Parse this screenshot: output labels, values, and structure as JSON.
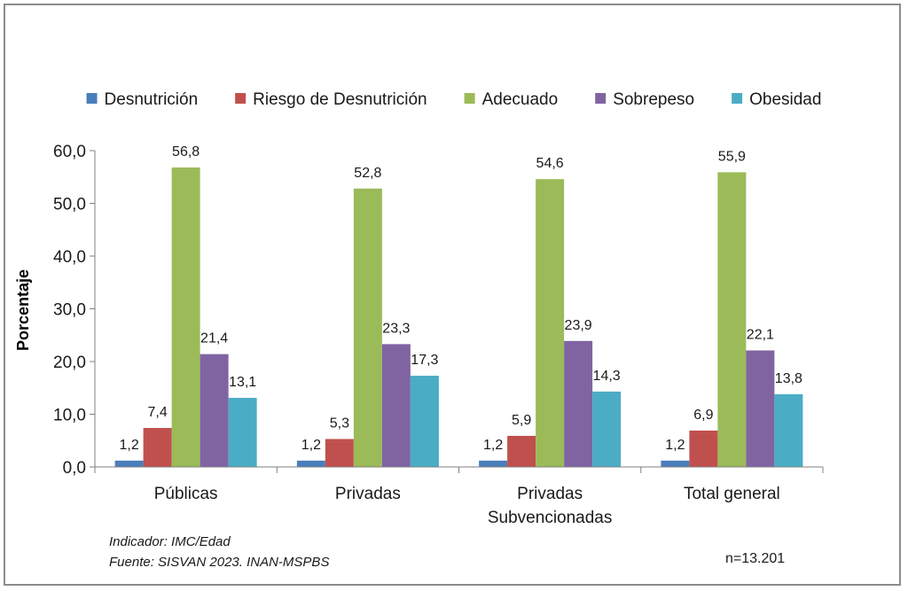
{
  "chart_data": {
    "type": "bar",
    "ylabel": "Porcentaje",
    "ylim": [
      0,
      60
    ],
    "yticks": [
      "0,0",
      "10,0",
      "20,0",
      "30,0",
      "40,0",
      "50,0",
      "60,0"
    ],
    "ytick_values": [
      0,
      10,
      20,
      30,
      40,
      50,
      60
    ],
    "categories": [
      [
        "Públicas"
      ],
      [
        "Privadas"
      ],
      [
        "Privadas",
        "Subvencionadas"
      ],
      [
        "Total general"
      ]
    ],
    "legend_position": "top",
    "series": [
      {
        "name": "Desnutrición",
        "color": "#4a7ebb",
        "values": [
          1.2,
          1.2,
          1.2,
          1.2
        ],
        "labels": [
          "1,2",
          "1,2",
          "1,2",
          "1,2"
        ]
      },
      {
        "name": "Riesgo de Desnutrición",
        "color": "#c0504d",
        "values": [
          7.4,
          5.3,
          5.9,
          6.9
        ],
        "labels": [
          "7,4",
          "5,3",
          "5,9",
          "6,9"
        ]
      },
      {
        "name": "Adecuado",
        "color": "#9bbb59",
        "values": [
          56.8,
          52.8,
          54.6,
          55.9
        ],
        "labels": [
          "56,8",
          "52,8",
          "54,6",
          "55,9"
        ]
      },
      {
        "name": "Sobrepeso",
        "color": "#8064a2",
        "values": [
          21.4,
          23.3,
          23.9,
          22.1
        ],
        "labels": [
          "21,4",
          "23,3",
          "23,9",
          "22,1"
        ]
      },
      {
        "name": "Obesidad",
        "color": "#4bacc6",
        "values": [
          13.1,
          17.3,
          14.3,
          13.8
        ],
        "labels": [
          "13,1",
          "17,3",
          "14,3",
          "13,8"
        ]
      }
    ]
  },
  "notes": {
    "indicator": "Indicador: IMC/Edad",
    "source": "Fuente: SISVAN 2023. INAN-MSPBS",
    "sample": "n=13.201"
  }
}
